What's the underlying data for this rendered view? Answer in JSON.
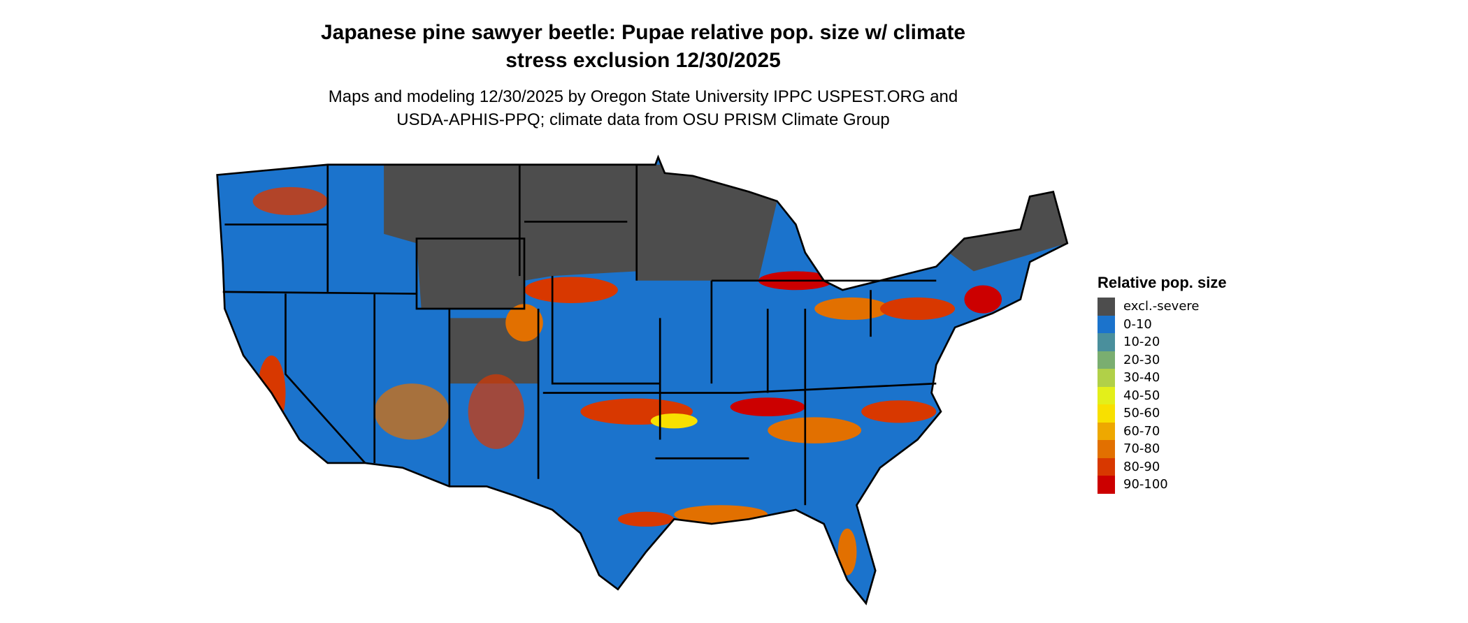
{
  "title": {
    "line1": "Japanese pine sawyer beetle: Pupae relative pop. size w/ climate",
    "line2": "stress exclusion 12/30/2025"
  },
  "subtitle": {
    "line1": "Maps and modeling 12/30/2025 by Oregon State University IPPC USPEST.ORG and",
    "line2": "USDA-APHIS-PPQ; climate data from OSU PRISM Climate Group"
  },
  "legend": {
    "title": "Relative pop. size",
    "items": [
      {
        "label": "excl.-severe",
        "color": "#4d4d4d"
      },
      {
        "label": "0-10",
        "color": "#1b73cc"
      },
      {
        "label": "10-20",
        "color": "#4a8f9c"
      },
      {
        "label": "20-30",
        "color": "#7aae70"
      },
      {
        "label": "30-40",
        "color": "#b1d048"
      },
      {
        "label": "40-50",
        "color": "#e3ef1a"
      },
      {
        "label": "50-60",
        "color": "#f8e000"
      },
      {
        "label": "60-70",
        "color": "#eea800"
      },
      {
        "label": "70-80",
        "color": "#e27000"
      },
      {
        "label": "80-90",
        "color": "#d83800"
      },
      {
        "label": "90-100",
        "color": "#cc0000"
      }
    ]
  }
}
